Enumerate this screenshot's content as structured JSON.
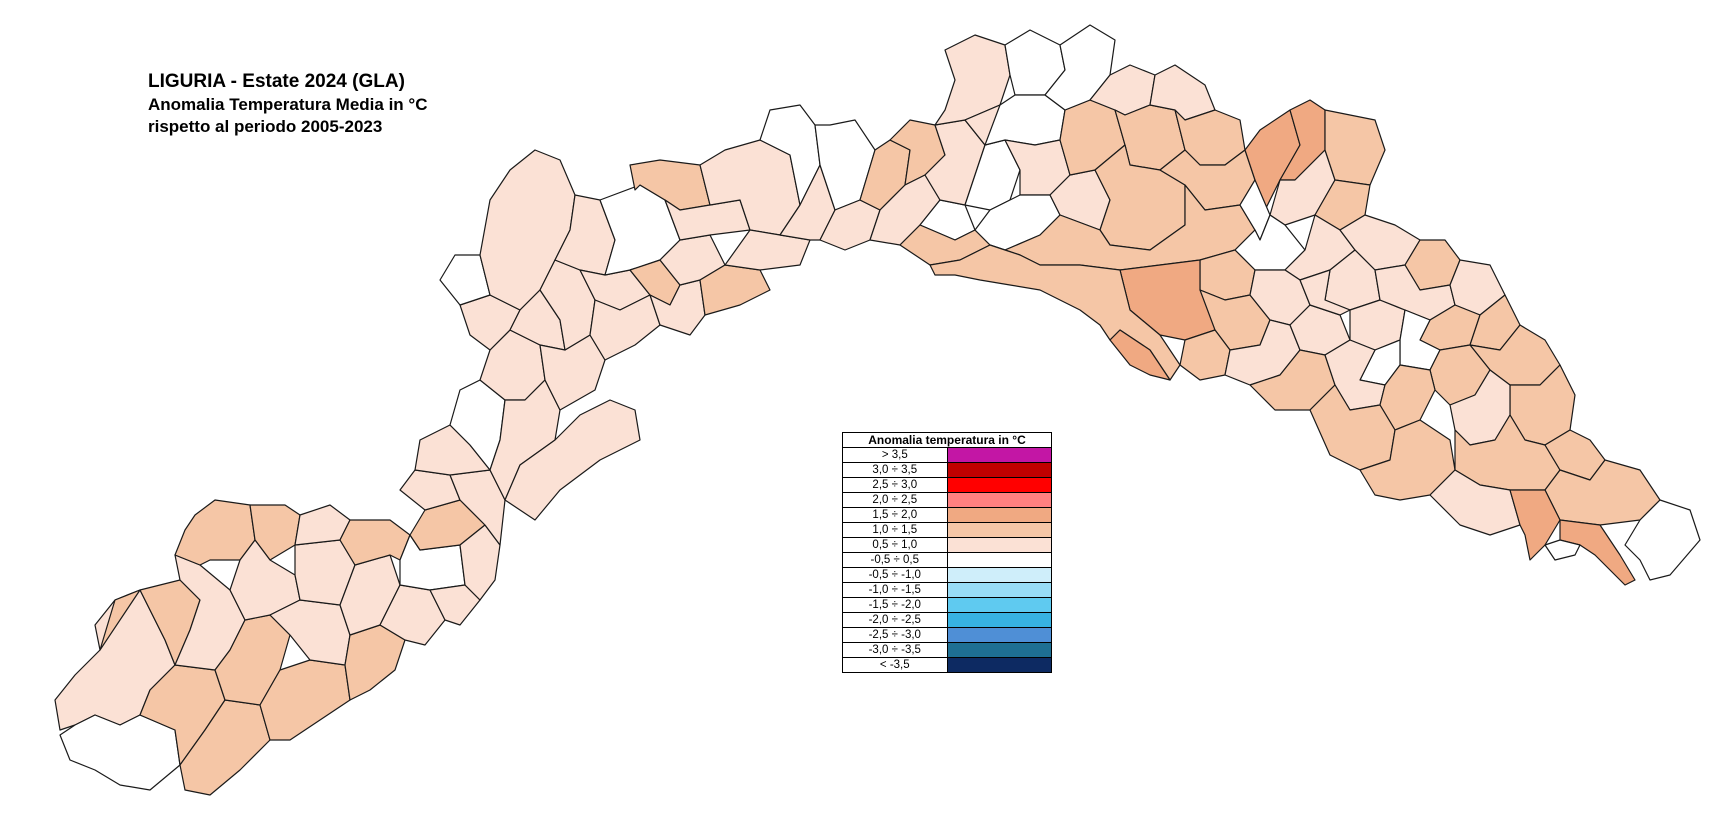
{
  "title": {
    "line1": "LIGURIA - Estate 2024 (GLA)",
    "line2": "Anomalia Temperatura Media in °C",
    "line3": "rispetto al periodo 2005-2023"
  },
  "legend": {
    "header": "Anomalia temperatura in °C",
    "classes": [
      {
        "label": "> 3,5",
        "color": "#c316a5"
      },
      {
        "label": "3,0 ÷ 3,5",
        "color": "#c00000"
      },
      {
        "label": "2,5 ÷ 3,0",
        "color": "#ff0000"
      },
      {
        "label": "2,0 ÷ 2,5",
        "color": "#ff8080"
      },
      {
        "label": "1,5 ÷ 2,0",
        "color": "#f0a982"
      },
      {
        "label": "1,0 ÷ 1,5",
        "color": "#f5c6a6"
      },
      {
        "label": "0,5 ÷ 1,0",
        "color": "#fbe1d5"
      },
      {
        "label": "-0,5 ÷ 0,5",
        "color": "#ffffff"
      },
      {
        "label": "-0,5 ÷ -1,0",
        "color": "#cfeefa"
      },
      {
        "label": "-1,0 ÷ -1,5",
        "color": "#98dcf6"
      },
      {
        "label": "-1,5 ÷ -2,0",
        "color": "#5fcaf0"
      },
      {
        "label": "-2,0 ÷ -2,5",
        "color": "#37b2e2"
      },
      {
        "label": "-2,5 ÷ -3,0",
        "color": "#4f8fd6"
      },
      {
        "label": "-3,0 ÷ -3,5",
        "color": "#1e6f93"
      },
      {
        "label": "< -3,5",
        "color": "#0d2a62"
      }
    ]
  }
}
